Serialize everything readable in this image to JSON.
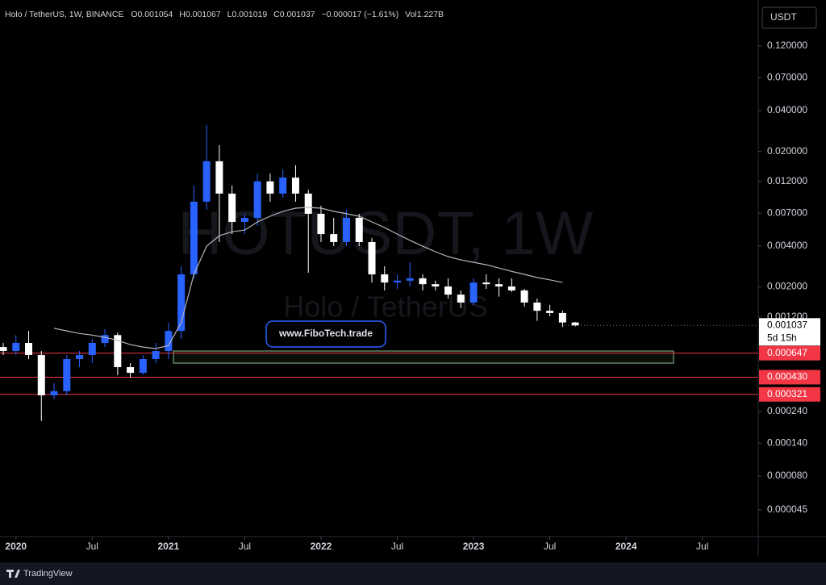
{
  "chart_data": {
    "type": "candlestick",
    "title": "Holo / TetherUS, 1W, BINANCE",
    "ohlc_header": [
      "O0.001054",
      "H0.001067",
      "L0.001019",
      "C0.001037",
      "−0.000017 (−1.61%)",
      "Vol1.227B"
    ],
    "watermark": [
      "HOTUSDT, 1W",
      "Holo / TetherUS"
    ],
    "currency": "USDT",
    "link_text": "www.FiboTech.trade",
    "footer": "TradingView",
    "countdown": "5d 15h",
    "log_scale": true,
    "xlim": [
      "2019-12",
      "2024-10"
    ],
    "xticks": [
      {
        "value": "2020-01",
        "label": "2020"
      },
      {
        "value": "2020-07",
        "label": "Jul"
      },
      {
        "value": "2021-01",
        "label": "2021"
      },
      {
        "value": "2021-07",
        "label": "Jul"
      },
      {
        "value": "2022-01",
        "label": "2022"
      },
      {
        "value": "2022-07",
        "label": "Jul"
      },
      {
        "value": "2023-01",
        "label": "2023"
      },
      {
        "value": "2023-07",
        "label": "Jul"
      },
      {
        "value": "2024-01",
        "label": "2024"
      },
      {
        "value": "2024-07",
        "label": "Jul"
      }
    ],
    "ylim": [
      2.86e-05,
      0.235
    ],
    "yticks": [
      {
        "value": 0.12,
        "label": "0.120000"
      },
      {
        "value": 0.07,
        "label": "0.070000"
      },
      {
        "value": 0.04,
        "label": "0.040000"
      },
      {
        "value": 0.02,
        "label": "0.020000"
      },
      {
        "value": 0.012,
        "label": "0.012000"
      },
      {
        "value": 0.007,
        "label": "0.007000"
      },
      {
        "value": 0.004,
        "label": "0.004000"
      },
      {
        "value": 0.002,
        "label": "0.002000"
      },
      {
        "value": 0.0012,
        "label": "0.001200"
      },
      {
        "value": 0.00024,
        "label": "0.000240"
      },
      {
        "value": 0.00014,
        "label": "0.000140"
      },
      {
        "value": 8e-05,
        "label": "0.000080"
      },
      {
        "value": 4.5e-05,
        "label": "0.000045"
      }
    ],
    "levels": [
      0.000647,
      {
        "value": 0.00043,
        "label": "0.000430"
      },
      0.000321
    ],
    "level_color": "#f23645",
    "zone": [
      0.000546,
      0.000671
    ],
    "zone_color": "#8fbc8f",
    "last": 0.001037,
    "series": [
      {
        "up_color": "#2962ff",
        "down_color": "#ffffff",
        "x": [
          "2019-12",
          "2020-01",
          "2020-02",
          "2020-03",
          "2020-04",
          "2020-05",
          "2020-06",
          "2020-07",
          "2020-08",
          "2020-09",
          "2020-10",
          "2020-11",
          "2020-12",
          "2021-01",
          "2021-02",
          "2021-03",
          "2021-04",
          "2021-05",
          "2021-06",
          "2021-07",
          "2021-08",
          "2021-09",
          "2021-10",
          "2021-11",
          "2021-12",
          "2022-01",
          "2022-02",
          "2022-03",
          "2022-04",
          "2022-05",
          "2022-06",
          "2022-07",
          "2022-08",
          "2022-09",
          "2022-10",
          "2022-11",
          "2022-12",
          "2023-01",
          "2023-02",
          "2023-03",
          "2023-04",
          "2023-05",
          "2023-06",
          "2023-07",
          "2023-08",
          "2023-09"
        ],
        "open": [
          0.000718,
          0.000671,
          0.00077,
          0.000627,
          0.000316,
          0.000339,
          0.000585,
          0.000627,
          0.00077,
          0.00088,
          0.00051,
          0.000463,
          0.000585,
          0.000671,
          0.000944,
          0.00247,
          0.0085,
          0.0169,
          0.00975,
          0.00603,
          0.00646,
          0.012,
          0.00975,
          0.0128,
          0.00975,
          0.00692,
          0.0049,
          0.00428,
          0.00646,
          0.00428,
          0.00247,
          0.00215,
          0.00222,
          0.00231,
          0.00209,
          0.00201,
          0.00175,
          0.00153,
          0.00215,
          0.00209,
          0.00201,
          0.00188,
          0.00153,
          0.00133,
          0.00128,
          0.00109
        ],
        "high": [
          0.00077,
          0.00088,
          0.000944,
          0.000671,
          0.000389,
          0.000627,
          0.000671,
          0.000825,
          0.000973,
          0.000917,
          0.000546,
          0.000627,
          0.00077,
          0.00109,
          0.00283,
          0.0112,
          0.0313,
          0.0222,
          0.0112,
          0.00692,
          0.0137,
          0.0137,
          0.0147,
          0.0158,
          0.0104,
          0.00794,
          0.00646,
          0.00741,
          0.00692,
          0.00458,
          0.00283,
          0.00247,
          0.00303,
          0.00247,
          0.00222,
          0.00231,
          0.00188,
          0.00231,
          0.00247,
          0.00231,
          0.00231,
          0.00193,
          0.00164,
          0.00147,
          0.00133,
          0.0011
        ],
        "low": [
          0.000627,
          0.000627,
          0.000585,
          0.000204,
          0.000295,
          0.000316,
          0.00051,
          0.000546,
          0.000718,
          0.000446,
          0.000427,
          0.000446,
          0.000546,
          0.000585,
          0.000825,
          0.00231,
          0.00741,
          0.00428,
          0.0049,
          0.0049,
          0.00563,
          0.0085,
          0.0091,
          0.0085,
          0.00254,
          0.00428,
          0.00399,
          0.00399,
          0.00399,
          0.00215,
          0.00188,
          0.00193,
          0.00201,
          0.00188,
          0.00188,
          0.00164,
          0.00139,
          0.00147,
          0.00193,
          0.00169,
          0.00183,
          0.00143,
          0.00112,
          0.00121,
          0.00101,
          0.001019
        ],
        "close": [
          0.000671,
          0.00077,
          0.000627,
          0.000316,
          0.000339,
          0.000585,
          0.000627,
          0.00077,
          0.00088,
          0.00051,
          0.000463,
          0.000585,
          0.000671,
          0.000944,
          0.00247,
          0.0085,
          0.0169,
          0.00975,
          0.00603,
          0.00646,
          0.012,
          0.00975,
          0.0128,
          0.00975,
          0.00692,
          0.0049,
          0.00428,
          0.00646,
          0.00428,
          0.00247,
          0.00215,
          0.00222,
          0.00231,
          0.00209,
          0.00201,
          0.00175,
          0.00153,
          0.00215,
          0.00209,
          0.00201,
          0.00188,
          0.00153,
          0.00133,
          0.00128,
          0.00109,
          0.001037
        ]
      },
      {
        "color": "#b2b5be",
        "x": [
          "2020-04",
          "2020-05",
          "2020-06",
          "2020-07",
          "2020-08",
          "2020-09",
          "2020-10",
          "2020-11",
          "2020-12",
          "2021-01",
          "2021-02",
          "2021-03",
          "2021-04",
          "2021-05",
          "2021-06",
          "2021-07",
          "2021-08",
          "2021-09",
          "2021-10",
          "2021-11",
          "2021-12",
          "2022-01",
          "2022-02",
          "2022-03",
          "2022-04",
          "2022-05",
          "2022-06",
          "2022-07",
          "2022-08",
          "2022-09",
          "2022-10",
          "2022-11",
          "2022-12",
          "2023-01",
          "2023-02",
          "2023-03",
          "2023-04",
          "2023-05",
          "2023-06",
          "2023-07",
          "2023-08"
        ],
        "values": [
          0.000987,
          0.000944,
          0.000904,
          0.00088,
          0.000846,
          0.000804,
          0.000748,
          0.000718,
          0.000699,
          0.000737,
          0.00109,
          0.00247,
          0.00399,
          0.00477,
          0.0051,
          0.00525,
          0.00603,
          0.00664,
          0.00721,
          0.00761,
          0.00772,
          0.00761,
          0.00721,
          0.00692,
          0.00664,
          0.00603,
          0.00547,
          0.0049,
          0.0044,
          0.00399,
          0.00363,
          0.00334,
          0.00316,
          0.00303,
          0.00291,
          0.00275,
          0.0026,
          0.00247,
          0.00234,
          0.00225,
          0.00215
        ]
      }
    ]
  }
}
